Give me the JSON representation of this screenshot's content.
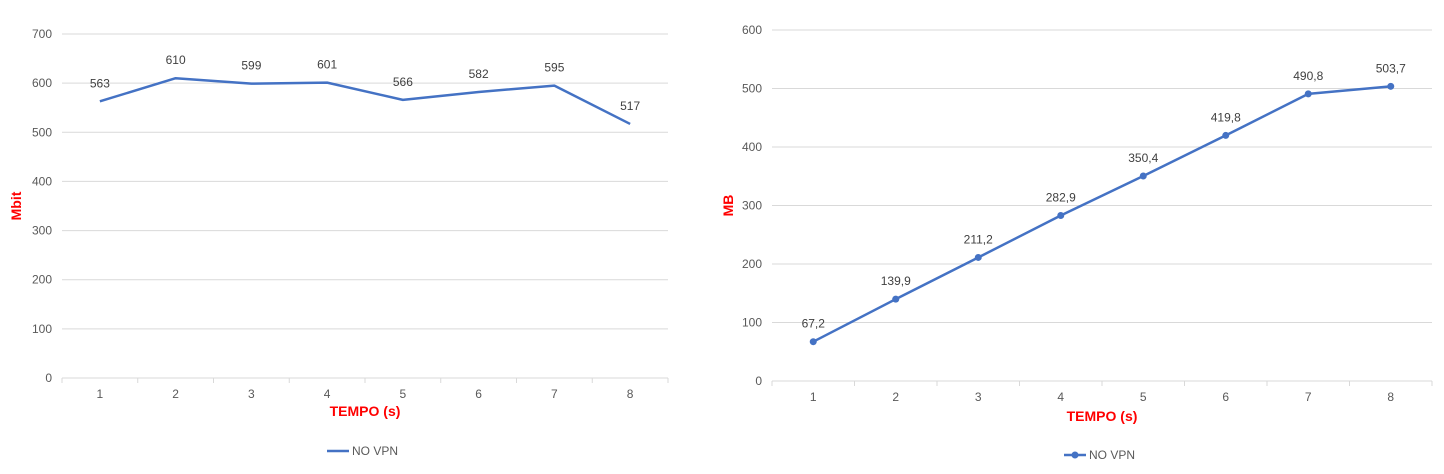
{
  "chart_data": [
    {
      "type": "line",
      "categories": [
        "1",
        "2",
        "3",
        "4",
        "5",
        "6",
        "7",
        "8"
      ],
      "series": [
        {
          "name": "NO VPN",
          "values": [
            563,
            610,
            599,
            601,
            566,
            582,
            595,
            517
          ],
          "data_labels": [
            "563",
            "610",
            "599",
            "601",
            "566",
            "582",
            "595",
            "517"
          ]
        }
      ],
      "markers": false,
      "xlabel": "TEMPO (s)",
      "ylabel": "Mbit",
      "ylim": [
        0,
        700
      ],
      "yticks": [
        "0",
        "100",
        "200",
        "300",
        "400",
        "500",
        "600",
        "700"
      ],
      "grid": true,
      "legend": "bottom-center",
      "colors": {
        "series": "#4472c4",
        "axis_title": "#ff0000",
        "grid": "#d9d9d9",
        "text": "#595959",
        "label": "#404040"
      }
    },
    {
      "type": "line",
      "categories": [
        "1",
        "2",
        "3",
        "4",
        "5",
        "6",
        "7",
        "8"
      ],
      "series": [
        {
          "name": "NO VPN",
          "values": [
            67.2,
            139.9,
            211.2,
            282.9,
            350.4,
            419.8,
            490.8,
            503.7
          ],
          "data_labels": [
            "67,2",
            "139,9",
            "211,2",
            "282,9",
            "350,4",
            "419,8",
            "490,8",
            "503,7"
          ]
        }
      ],
      "markers": true,
      "xlabel": "TEMPO (s)",
      "ylabel": "MB",
      "ylim": [
        0,
        600
      ],
      "yticks": [
        "0",
        "100",
        "200",
        "300",
        "400",
        "500",
        "600"
      ],
      "grid": true,
      "legend": "bottom-center",
      "colors": {
        "series": "#4472c4",
        "axis_title": "#ff0000",
        "grid": "#d9d9d9",
        "text": "#595959",
        "label": "#404040"
      }
    }
  ]
}
